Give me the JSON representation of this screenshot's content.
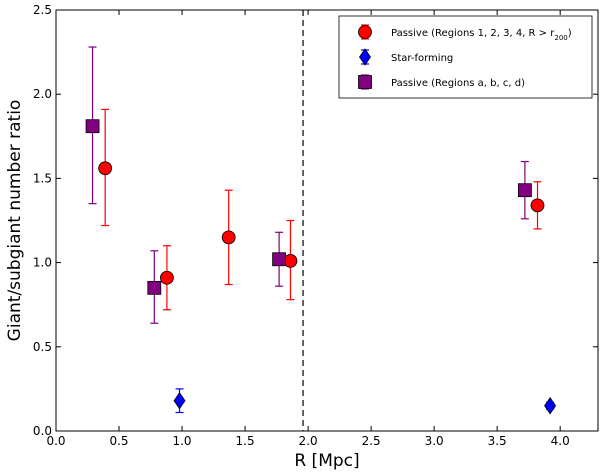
{
  "chart_data": {
    "type": "scatter",
    "title": "",
    "xlabel": "R [Mpc]",
    "ylabel": "Giant/subgiant number ratio",
    "xlim": [
      0.0,
      4.3
    ],
    "ylim": [
      0.0,
      2.5
    ],
    "xticks": [
      0.0,
      0.5,
      1.0,
      1.5,
      2.0,
      2.5,
      3.0,
      3.5,
      4.0
    ],
    "xtick_labels": [
      "0.0",
      "0.5",
      "1.0",
      "1.5",
      "2.0",
      "2.5",
      "3.0",
      "3.5",
      "4.0"
    ],
    "yticks": [
      0.0,
      0.5,
      1.0,
      1.5,
      2.0,
      2.5
    ],
    "ytick_labels": [
      "0.0",
      "0.5",
      "1.0",
      "1.5",
      "2.0",
      "2.5"
    ],
    "grid": false,
    "vline": {
      "x": 1.96,
      "style": "dashed",
      "color": "#000000"
    },
    "legend_position": "top-right",
    "series": [
      {
        "name": "Passive (Regions 1, 2, 3, 4, R > r",
        "name_subscript": "200",
        "name_close": ")",
        "marker": "circle",
        "color": "#ff0000",
        "errcolor": "#ff0000",
        "points": [
          {
            "x": 0.39,
            "y": 1.56,
            "ylo": 1.22,
            "yhi": 1.91
          },
          {
            "x": 0.88,
            "y": 0.91,
            "ylo": 0.72,
            "yhi": 1.1
          },
          {
            "x": 1.37,
            "y": 1.15,
            "ylo": 0.87,
            "yhi": 1.43
          },
          {
            "x": 1.86,
            "y": 1.01,
            "ylo": 0.78,
            "yhi": 1.25
          },
          {
            "x": 3.82,
            "y": 1.34,
            "ylo": 1.2,
            "yhi": 1.48
          }
        ]
      },
      {
        "name": "Star-forming",
        "marker": "diamond",
        "color": "#0000ff",
        "errcolor": "#0000ff",
        "points": [
          {
            "x": 0.98,
            "y": 0.18,
            "ylo": 0.11,
            "yhi": 0.25
          },
          {
            "x": 3.92,
            "y": 0.15,
            "ylo": 0.13,
            "yhi": 0.17
          }
        ]
      },
      {
        "name": "Passive (Regions a, b, c, d)",
        "marker": "square",
        "color": "#800080",
        "errcolor": "#800080",
        "points": [
          {
            "x": 0.29,
            "y": 1.81,
            "ylo": 1.35,
            "yhi": 2.28
          },
          {
            "x": 0.78,
            "y": 0.85,
            "ylo": 0.64,
            "yhi": 1.07
          },
          {
            "x": 1.77,
            "y": 1.02,
            "ylo": 0.86,
            "yhi": 1.18
          },
          {
            "x": 3.72,
            "y": 1.43,
            "ylo": 1.26,
            "yhi": 1.6
          }
        ]
      }
    ]
  }
}
